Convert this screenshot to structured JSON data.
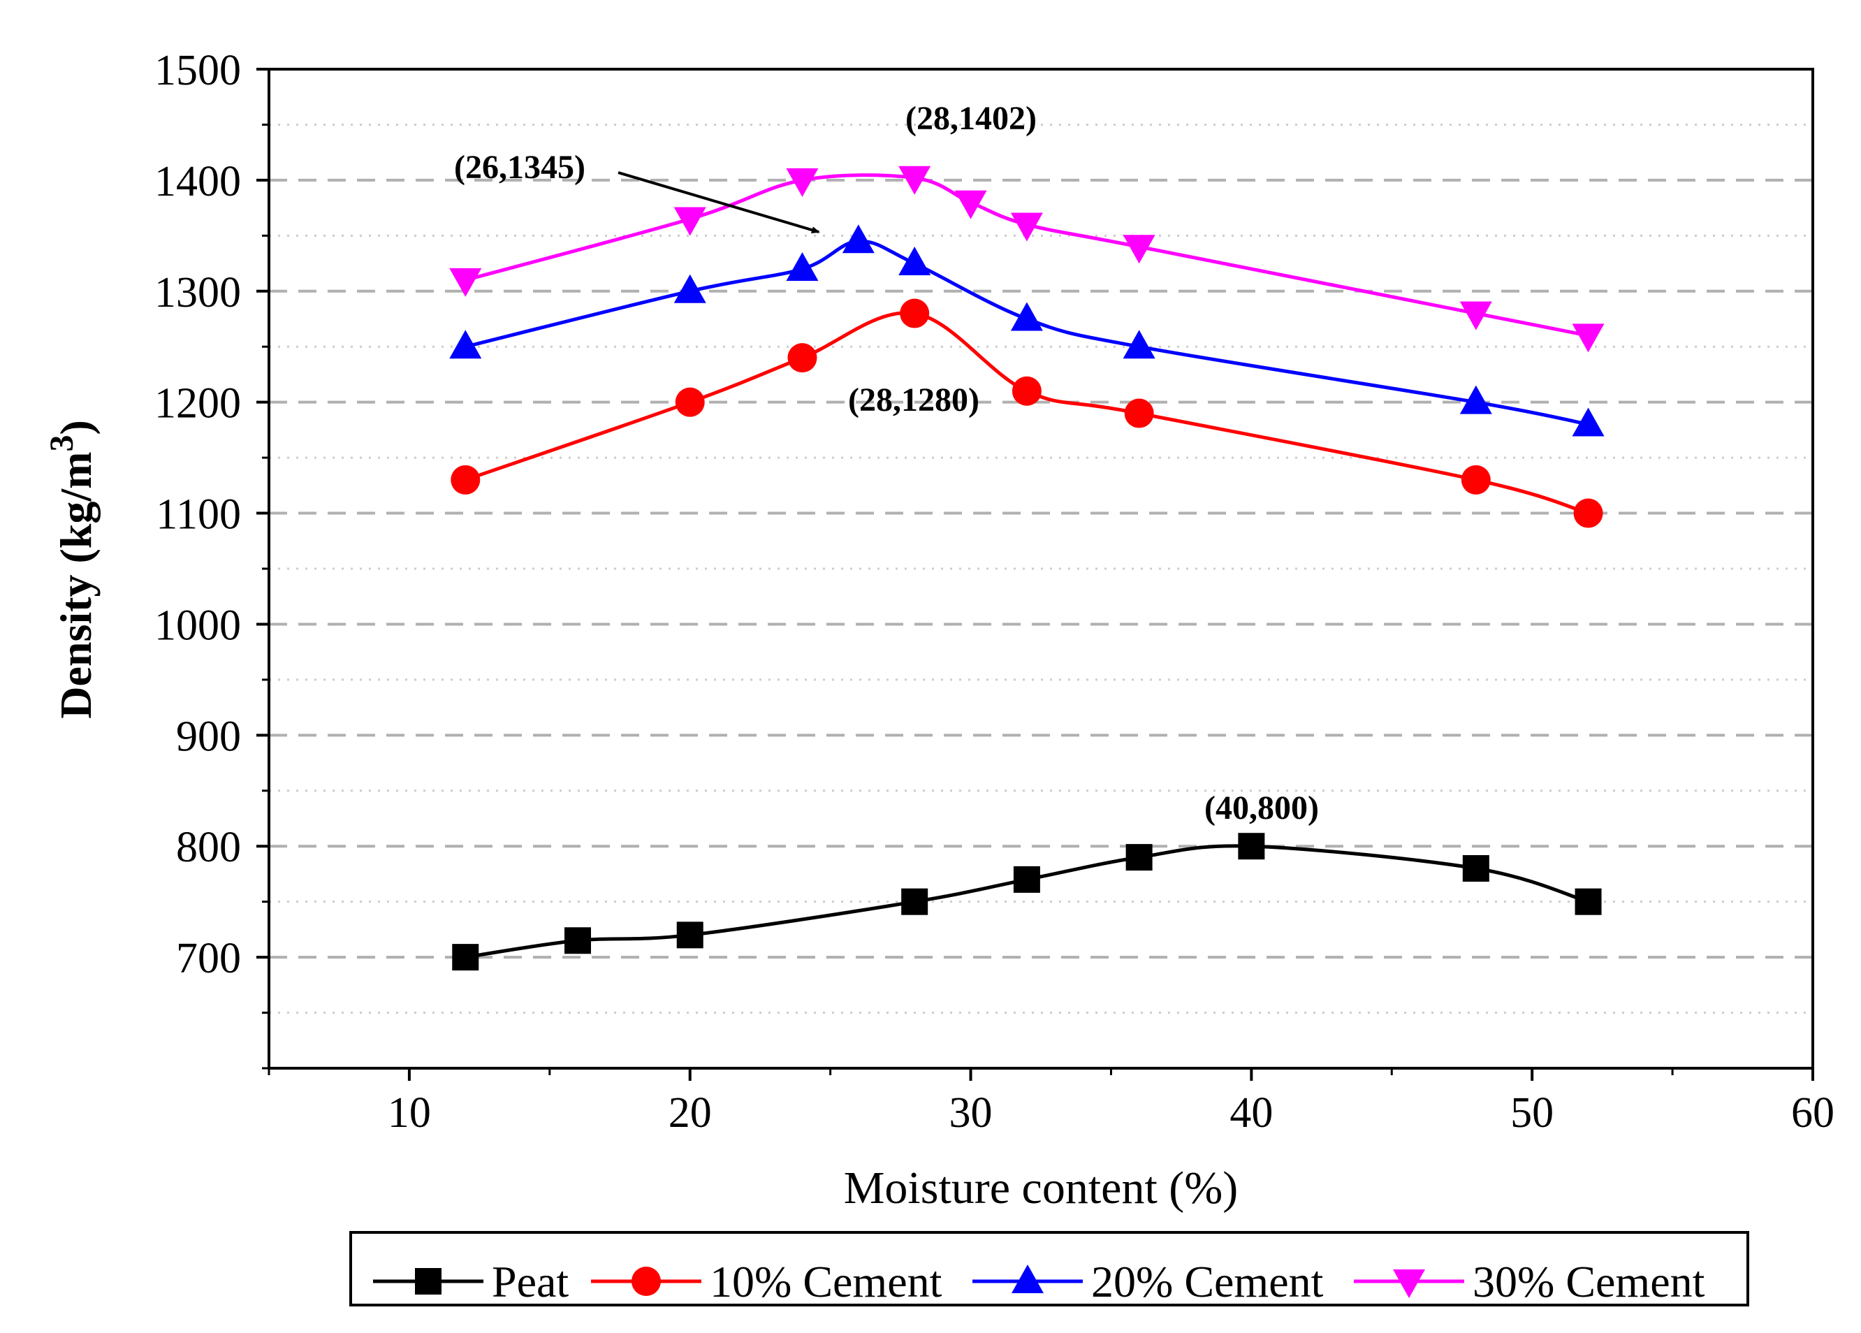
{
  "chart_data": {
    "type": "line",
    "title": "",
    "xlabel": "Moisture content (%)",
    "ylabel": "Density (kg/m",
    "ylabel_superscript": "3",
    "ylabel_close": ")",
    "xlim": [
      5,
      60
    ],
    "ylim": [
      600,
      1500
    ],
    "xticks": [
      10,
      20,
      30,
      40,
      50,
      60
    ],
    "xtick_labels": [
      "10",
      "20",
      "30",
      "40",
      "50",
      "60"
    ],
    "yticks": [
      700,
      800,
      900,
      1000,
      1100,
      1200,
      1300,
      1400,
      1500
    ],
    "ytick_labels": [
      "700",
      "800",
      "900",
      "1000",
      "1100",
      "1200",
      "1300",
      "1400",
      "1500"
    ],
    "grid": true,
    "legend_position": "bottom",
    "series": [
      {
        "name": "Peat",
        "color": "#000000",
        "marker": "square",
        "x": [
          12,
          16,
          20,
          28,
          32,
          36,
          40,
          48,
          52
        ],
        "y": [
          700,
          715,
          720,
          750,
          770,
          790,
          800,
          780,
          750
        ]
      },
      {
        "name": "10% Cement",
        "color": "#ff0000",
        "marker": "circle",
        "x": [
          12,
          20,
          24,
          28,
          32,
          36,
          48,
          52
        ],
        "y": [
          1130,
          1200,
          1240,
          1280,
          1210,
          1190,
          1130,
          1100
        ]
      },
      {
        "name": "20% Cement",
        "color": "#0000ff",
        "marker": "triangle-up",
        "x": [
          12,
          20,
          24,
          26,
          28,
          32,
          36,
          48,
          52
        ],
        "y": [
          1250,
          1300,
          1320,
          1345,
          1325,
          1275,
          1250,
          1200,
          1180
        ]
      },
      {
        "name": "30% Cement",
        "color": "#ff00ff",
        "marker": "triangle-down",
        "x": [
          12,
          20,
          24,
          28,
          30,
          32,
          36,
          48,
          52
        ],
        "y": [
          1310,
          1365,
          1400,
          1402,
          1380,
          1360,
          1340,
          1280,
          1260
        ]
      }
    ],
    "annotations": [
      {
        "text": "(28,1402)",
        "x": 28,
        "y": 1402
      },
      {
        "text": "(26,1345)",
        "x": 26,
        "y": 1345,
        "arrow": true
      },
      {
        "text": "(28,1280)",
        "x": 28,
        "y": 1280
      },
      {
        "text": "(40,800)",
        "x": 40,
        "y": 800
      }
    ]
  }
}
